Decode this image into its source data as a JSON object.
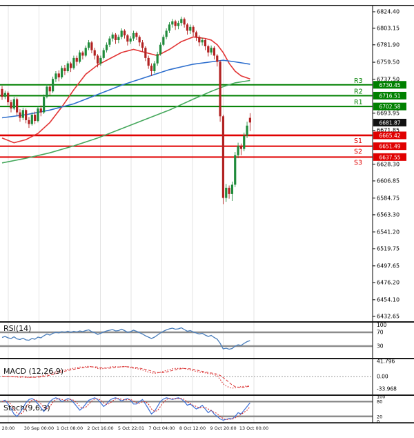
{
  "page": {
    "background": "#ffffff"
  },
  "chart_data": [
    {
      "type": "candlestick",
      "panel": "price",
      "x_labels": [
        "20:00",
        "30 Sep 00:00",
        "1 Oct 08:00",
        "2 Oct 16:00",
        "5 Oct 22:01",
        "7 Oct 04:00",
        "8 Oct 12:00",
        "9 Oct 20:00",
        "13 Oct 00:00"
      ],
      "y_ticks": [
        "6824.40",
        "6803.15",
        "6781.90",
        "6759.50",
        "6737.50",
        "6693.95",
        "6671.85",
        "6628.30",
        "6606.85",
        "6584.75",
        "6563.30",
        "6541.20",
        "6519.75",
        "6497.65",
        "6476.20",
        "6454.10",
        "6432.65"
      ],
      "y_range": [
        6432.65,
        6824.4
      ],
      "last_price": 6681.87,
      "levels": [
        {
          "label": "R3",
          "price": 6730.45,
          "type": "resistance"
        },
        {
          "label": "R2",
          "price": 6716.51,
          "type": "resistance"
        },
        {
          "label": "R1",
          "price": 6702.58,
          "type": "resistance"
        },
        {
          "label": "S1",
          "price": 6665.42,
          "type": "support"
        },
        {
          "label": "S2",
          "price": 6651.49,
          "type": "support"
        },
        {
          "label": "S3",
          "price": 6637.55,
          "type": "support"
        }
      ],
      "moving_averages": [
        {
          "name": "ma-fast-red",
          "color": "#e23535",
          "points": [
            [
              0,
              6662
            ],
            [
              4,
              6656
            ],
            [
              8,
              6660
            ],
            [
              12,
              6668
            ],
            [
              16,
              6682
            ],
            [
              20,
              6702
            ],
            [
              24,
              6724
            ],
            [
              28,
              6744
            ],
            [
              32,
              6756
            ],
            [
              36,
              6764
            ],
            [
              40,
              6772
            ],
            [
              44,
              6776
            ],
            [
              48,
              6772
            ],
            [
              52,
              6768
            ],
            [
              56,
              6776
            ],
            [
              60,
              6786
            ],
            [
              64,
              6792
            ],
            [
              68,
              6790
            ],
            [
              70,
              6788
            ],
            [
              72,
              6782
            ],
            [
              74,
              6772
            ],
            [
              76,
              6758
            ],
            [
              78,
              6748
            ],
            [
              80,
              6742
            ],
            [
              83,
              6738
            ]
          ]
        },
        {
          "name": "ma-mid-blue",
          "color": "#2e6fce",
          "points": [
            [
              0,
              6688
            ],
            [
              8,
              6692
            ],
            [
              16,
              6698
            ],
            [
              24,
              6706
            ],
            [
              32,
              6718
            ],
            [
              40,
              6730
            ],
            [
              48,
              6740
            ],
            [
              56,
              6750
            ],
            [
              64,
              6757
            ],
            [
              70,
              6760
            ],
            [
              74,
              6762
            ],
            [
              78,
              6760
            ],
            [
              83,
              6757
            ]
          ]
        },
        {
          "name": "ma-slow-green",
          "color": "#45a85c",
          "points": [
            [
              0,
              6630
            ],
            [
              8,
              6636
            ],
            [
              16,
              6643
            ],
            [
              24,
              6652
            ],
            [
              32,
              6662
            ],
            [
              40,
              6674
            ],
            [
              48,
              6686
            ],
            [
              56,
              6698
            ],
            [
              64,
              6712
            ],
            [
              70,
              6722
            ],
            [
              74,
              6728
            ],
            [
              78,
              6733
            ],
            [
              83,
              6736
            ]
          ]
        }
      ],
      "candles": [
        [
          6725,
          6729,
          6711,
          6715
        ],
        [
          6715,
          6723,
          6712,
          6720
        ],
        [
          6720,
          6722,
          6704,
          6708
        ],
        [
          6708,
          6711,
          6695,
          6700
        ],
        [
          6700,
          6715,
          6698,
          6712
        ],
        [
          6712,
          6714,
          6691,
          6695
        ],
        [
          6695,
          6699,
          6683,
          6688
        ],
        [
          6688,
          6701,
          6685,
          6698
        ],
        [
          6698,
          6700,
          6681,
          6685
        ],
        [
          6685,
          6689,
          6675,
          6680
        ],
        [
          6680,
          6695,
          6678,
          6692
        ],
        [
          6692,
          6696,
          6680,
          6684
        ],
        [
          6684,
          6703,
          6682,
          6700
        ],
        [
          6700,
          6704,
          6690,
          6695
        ],
        [
          6695,
          6718,
          6693,
          6715
        ],
        [
          6715,
          6731,
          6713,
          6728
        ],
        [
          6728,
          6730,
          6717,
          6722
        ],
        [
          6722,
          6741,
          6720,
          6738
        ],
        [
          6738,
          6748,
          6734,
          6745
        ],
        [
          6745,
          6749,
          6735,
          6740
        ],
        [
          6740,
          6755,
          6738,
          6752
        ],
        [
          6752,
          6756,
          6743,
          6748
        ],
        [
          6748,
          6761,
          6746,
          6758
        ],
        [
          6758,
          6760,
          6747,
          6752
        ],
        [
          6752,
          6768,
          6750,
          6765
        ],
        [
          6765,
          6768,
          6755,
          6760
        ],
        [
          6760,
          6775,
          6758,
          6772
        ],
        [
          6772,
          6774,
          6763,
          6768
        ],
        [
          6768,
          6781,
          6766,
          6778
        ],
        [
          6778,
          6788,
          6775,
          6785
        ],
        [
          6785,
          6787,
          6771,
          6775
        ],
        [
          6775,
          6778,
          6763,
          6768
        ],
        [
          6768,
          6770,
          6753,
          6758
        ],
        [
          6758,
          6768,
          6755,
          6765
        ],
        [
          6765,
          6778,
          6763,
          6775
        ],
        [
          6775,
          6785,
          6772,
          6782
        ],
        [
          6782,
          6793,
          6779,
          6790
        ],
        [
          6790,
          6798,
          6786,
          6795
        ],
        [
          6795,
          6797,
          6783,
          6788
        ],
        [
          6788,
          6795,
          6784,
          6792
        ],
        [
          6792,
          6803,
          6789,
          6800
        ],
        [
          6800,
          6802,
          6790,
          6794
        ],
        [
          6794,
          6796,
          6781,
          6786
        ],
        [
          6786,
          6793,
          6783,
          6790
        ],
        [
          6790,
          6800,
          6787,
          6797
        ],
        [
          6797,
          6799,
          6788,
          6792
        ],
        [
          6792,
          6794,
          6780,
          6785
        ],
        [
          6785,
          6788,
          6773,
          6778
        ],
        [
          6778,
          6780,
          6761,
          6765
        ],
        [
          6765,
          6768,
          6751,
          6755
        ],
        [
          6755,
          6758,
          6742,
          6748
        ],
        [
          6748,
          6761,
          6745,
          6758
        ],
        [
          6758,
          6773,
          6755,
          6770
        ],
        [
          6770,
          6785,
          6768,
          6782
        ],
        [
          6782,
          6795,
          6780,
          6792
        ],
        [
          6792,
          6803,
          6789,
          6800
        ],
        [
          6800,
          6811,
          6797,
          6808
        ],
        [
          6808,
          6815,
          6804,
          6812
        ],
        [
          6812,
          6814,
          6801,
          6806
        ],
        [
          6806,
          6813,
          6802,
          6810
        ],
        [
          6810,
          6818,
          6806,
          6815
        ],
        [
          6815,
          6817,
          6804,
          6808
        ],
        [
          6808,
          6810,
          6795,
          6800
        ],
        [
          6800,
          6808,
          6796,
          6805
        ],
        [
          6805,
          6807,
          6793,
          6798
        ],
        [
          6798,
          6800,
          6787,
          6792
        ],
        [
          6792,
          6794,
          6780,
          6785
        ],
        [
          6785,
          6791,
          6781,
          6788
        ],
        [
          6788,
          6790,
          6775,
          6780
        ],
        [
          6780,
          6782,
          6767,
          6772
        ],
        [
          6772,
          6781,
          6769,
          6778
        ],
        [
          6778,
          6780,
          6763,
          6768
        ],
        [
          6768,
          6770,
          6754,
          6760
        ],
        [
          6760,
          6762,
          6683,
          6690
        ],
        [
          6690,
          6692,
          6577,
          6585
        ],
        [
          6585,
          6603,
          6580,
          6598
        ],
        [
          6598,
          6601,
          6584,
          6590
        ],
        [
          6590,
          6606,
          6581,
          6602
        ],
        [
          6602,
          6644,
          6599,
          6640
        ],
        [
          6640,
          6656,
          6636,
          6652
        ],
        [
          6652,
          6655,
          6640,
          6648
        ],
        [
          6648,
          6669,
          6645,
          6665
        ],
        [
          6665,
          6683,
          6662,
          6678
        ],
        [
          6688,
          6694,
          6671,
          6682
        ]
      ],
      "colors": {
        "up": "#1f8b3b",
        "down": "#b22222",
        "resistance": "#008000",
        "support": "#e00000",
        "price_badge_bg": "#111111",
        "grid": "#e3e3e3",
        "threshold": "#8c8c8c",
        "separator": "#1a1a1a"
      }
    },
    {
      "type": "line",
      "label": "RSI(14)",
      "y_ticks": [
        "100",
        "70",
        "30"
      ],
      "levels": [
        70,
        30
      ],
      "y_range": [
        0,
        100
      ],
      "color": "#4a7ebb",
      "values": [
        55,
        58,
        54,
        52,
        57,
        51,
        49,
        53,
        48,
        47,
        52,
        50,
        56,
        54,
        60,
        65,
        62,
        67,
        70,
        68,
        72,
        70,
        73,
        70,
        73,
        71,
        74,
        72,
        75,
        77,
        72,
        69,
        64,
        67,
        71,
        74,
        76,
        78,
        74,
        75,
        79,
        75,
        70,
        72,
        76,
        73,
        69,
        65,
        60,
        56,
        52,
        56,
        62,
        68,
        73,
        77,
        80,
        82,
        79,
        80,
        83,
        78,
        73,
        75,
        71,
        68,
        65,
        67,
        62,
        58,
        61,
        55,
        50,
        38,
        22,
        24,
        21,
        23,
        30,
        34,
        32,
        38,
        43,
        46
      ]
    },
    {
      "type": "line",
      "label": "MACD (12,26,9)",
      "y_ticks": [
        "41.796",
        "0.00",
        "-33.968"
      ],
      "y_range": [
        -41,
        47
      ],
      "color": "#d93030",
      "values": [
        1,
        0.5,
        0,
        -1,
        -0.5,
        -1.5,
        -2,
        -1,
        -2.5,
        -3,
        -1.5,
        -2,
        0,
        1,
        3,
        6,
        8,
        10,
        13,
        15,
        17,
        18,
        20,
        21,
        23,
        24,
        26,
        26,
        27,
        28,
        27,
        25,
        22,
        21,
        22,
        24,
        26,
        27,
        27,
        26,
        27,
        28,
        26,
        24,
        23,
        22,
        20,
        18,
        15,
        12,
        10,
        9,
        10,
        12,
        14,
        17,
        19,
        21,
        22,
        22,
        23,
        22,
        20,
        18,
        16,
        14,
        12,
        11,
        10,
        8,
        7,
        5,
        2,
        -8,
        -20,
        -26,
        -30,
        -32,
        -31,
        -29,
        -28,
        -27,
        -26,
        -25
      ]
    },
    {
      "type": "line",
      "label": "Stoch(9,6,3)",
      "y_ticks": [
        "100",
        "80",
        "20",
        "0"
      ],
      "levels": [
        80,
        20
      ],
      "y_range": [
        0,
        100
      ],
      "k_color": "#3c6fd6",
      "d_color": "#d93030",
      "values_k": [
        80,
        85,
        70,
        50,
        30,
        20,
        35,
        55,
        75,
        88,
        92,
        85,
        70,
        55,
        40,
        60,
        80,
        90,
        95,
        90,
        80,
        85,
        92,
        88,
        75,
        60,
        45,
        55,
        70,
        85,
        90,
        95,
        88,
        75,
        60,
        70,
        85,
        92,
        95,
        90,
        82,
        88,
        92,
        85,
        70,
        70,
        80,
        88,
        70,
        50,
        30,
        40,
        60,
        80,
        90,
        95,
        92,
        88,
        92,
        95,
        90,
        80,
        65,
        70,
        60,
        50,
        55,
        65,
        50,
        35,
        45,
        30,
        20,
        10,
        5,
        8,
        12,
        10,
        20,
        35,
        30,
        45,
        60,
        75
      ]
    }
  ]
}
